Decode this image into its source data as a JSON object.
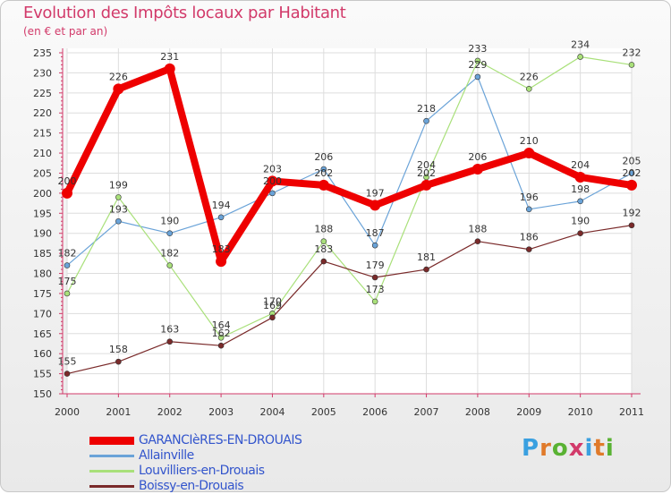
{
  "header": {
    "title": "Evolution des Impôts locaux par Habitant",
    "subtitle": "(en € et par an)"
  },
  "logo": {
    "text": "Proxiti",
    "letter_colors": [
      "#3aa0e0",
      "#e07a2a",
      "#59b233",
      "#d23a6a",
      "#3aa0e0",
      "#e07a2a",
      "#59b233"
    ]
  },
  "chart_data": {
    "type": "line",
    "title": "Evolution des Impôts locaux par Habitant",
    "subtitle": "(en € et par an)",
    "xlabel": "",
    "ylabel": "",
    "x": [
      "2000",
      "2001",
      "2002",
      "2003",
      "2004",
      "2005",
      "2006",
      "2007",
      "2008",
      "2009",
      "2010",
      "2011"
    ],
    "ylim": [
      150,
      235
    ],
    "yticks": [
      150,
      155,
      160,
      165,
      170,
      175,
      180,
      185,
      190,
      195,
      200,
      205,
      210,
      215,
      220,
      225,
      230,
      235
    ],
    "grid": true,
    "legend_position": "bottom-left",
    "series": [
      {
        "name": "GARANCIèRES-EN-DROUAIS",
        "color": "#ee0000",
        "line_width": 8,
        "marker_radius": 6,
        "values": [
          200,
          226,
          231,
          183,
          203,
          202,
          197,
          202,
          206,
          210,
          204,
          202
        ]
      },
      {
        "name": "Allainville",
        "color": "#6aa3d8",
        "line_width": 1.2,
        "marker_radius": 3,
        "values": [
          182,
          193,
          190,
          194,
          200,
          206,
          187,
          218,
          229,
          196,
          198,
          205
        ]
      },
      {
        "name": "Louvilliers-en-Drouais",
        "color": "#a9e07a",
        "line_width": 1.2,
        "marker_radius": 3,
        "values": [
          175,
          199,
          182,
          164,
          170,
          188,
          173,
          204,
          233,
          226,
          234,
          232
        ]
      },
      {
        "name": "Boissy-en-Drouais",
        "color": "#7a2a2a",
        "line_width": 1.2,
        "marker_radius": 3,
        "values": [
          155,
          158,
          163,
          162,
          169,
          183,
          179,
          181,
          188,
          186,
          190,
          192
        ]
      }
    ]
  }
}
